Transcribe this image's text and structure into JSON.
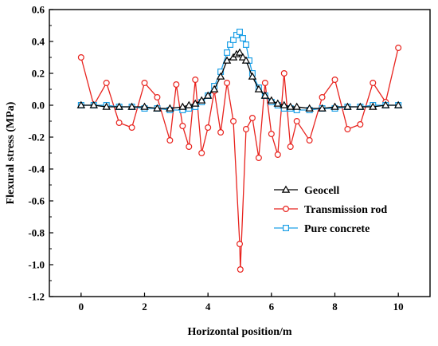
{
  "chart_data": {
    "type": "line",
    "title": "",
    "xlabel": "Horizontal position/m",
    "ylabel": "Flexural stress (MPa)",
    "xlim": [
      -1,
      11
    ],
    "ylim": [
      -1.2,
      0.6
    ],
    "xticks": [
      0,
      2,
      4,
      6,
      8,
      10
    ],
    "yticks": [
      -1.2,
      -1.0,
      -0.8,
      -0.6,
      -0.4,
      -0.2,
      0.0,
      0.2,
      0.4,
      0.6
    ],
    "xtick_labels": [
      "0",
      "2",
      "4",
      "6",
      "8",
      "10"
    ],
    "ytick_labels": [
      "-1.2",
      "-1.0",
      "-0.8",
      "-0.6",
      "-0.4",
      "-0.2",
      "0.0",
      "0.2",
      "0.4",
      "0.6"
    ],
    "grid": false,
    "legend_position": "lower-right",
    "series": [
      {
        "name": "Geocell",
        "color": "#000000",
        "marker": "triangle",
        "x": [
          0,
          0.4,
          0.8,
          1.2,
          1.6,
          2.0,
          2.4,
          2.8,
          3.2,
          3.4,
          3.6,
          3.8,
          4.0,
          4.2,
          4.4,
          4.6,
          4.8,
          4.9,
          5.0,
          5.1,
          5.2,
          5.4,
          5.6,
          5.8,
          6.0,
          6.2,
          6.4,
          6.6,
          6.8,
          7.2,
          7.6,
          8.0,
          8.4,
          8.8,
          9.2,
          9.6,
          10.0
        ],
        "y": [
          0.0,
          0.0,
          -0.01,
          -0.01,
          -0.01,
          -0.01,
          -0.02,
          -0.02,
          -0.01,
          0.0,
          0.01,
          0.03,
          0.06,
          0.1,
          0.18,
          0.28,
          0.3,
          0.32,
          0.33,
          0.3,
          0.28,
          0.18,
          0.1,
          0.06,
          0.03,
          0.01,
          0.0,
          -0.01,
          -0.01,
          -0.02,
          -0.02,
          -0.01,
          -0.01,
          -0.01,
          -0.01,
          0.0,
          0.0
        ]
      },
      {
        "name": "Transmission rod",
        "color": "#e8231e",
        "marker": "circle",
        "x": [
          0,
          0.4,
          0.8,
          1.2,
          1.6,
          2.0,
          2.4,
          2.8,
          3.0,
          3.2,
          3.4,
          3.6,
          3.8,
          4.0,
          4.2,
          4.4,
          4.6,
          4.8,
          5.0,
          5.02,
          5.2,
          5.4,
          5.6,
          5.8,
          6.0,
          6.2,
          6.4,
          6.6,
          6.8,
          7.2,
          7.6,
          8.0,
          8.4,
          8.8,
          9.2,
          9.6,
          10.0
        ],
        "y": [
          0.3,
          0.0,
          0.14,
          -0.11,
          -0.14,
          0.14,
          0.05,
          -0.22,
          0.13,
          -0.13,
          -0.26,
          0.16,
          -0.3,
          -0.14,
          0.09,
          -0.17,
          0.14,
          -0.1,
          -0.87,
          -1.03,
          -0.15,
          -0.08,
          -0.33,
          0.14,
          -0.18,
          -0.31,
          0.2,
          -0.26,
          -0.1,
          -0.22,
          0.05,
          0.16,
          -0.15,
          -0.12,
          0.14,
          0.02,
          0.36
        ]
      },
      {
        "name": "Pure concrete",
        "color": "#1ea0e6",
        "marker": "square",
        "x": [
          0,
          0.4,
          0.8,
          1.2,
          1.6,
          2.0,
          2.4,
          2.8,
          3.2,
          3.4,
          3.6,
          3.8,
          4.0,
          4.2,
          4.4,
          4.6,
          4.7,
          4.8,
          4.9,
          5.0,
          5.1,
          5.2,
          5.3,
          5.4,
          5.6,
          5.8,
          6.0,
          6.2,
          6.4,
          6.6,
          6.8,
          7.2,
          7.6,
          8.0,
          8.4,
          8.8,
          9.2,
          9.6,
          10.0
        ],
        "y": [
          0.0,
          0.0,
          0.0,
          -0.01,
          -0.01,
          -0.02,
          -0.02,
          -0.03,
          -0.03,
          -0.02,
          -0.01,
          0.02,
          0.06,
          0.12,
          0.21,
          0.33,
          0.38,
          0.41,
          0.44,
          0.46,
          0.42,
          0.38,
          0.28,
          0.2,
          0.11,
          0.06,
          0.02,
          0.0,
          -0.02,
          -0.02,
          -0.03,
          -0.03,
          -0.02,
          -0.02,
          -0.01,
          -0.01,
          0.0,
          0.0,
          0.0
        ]
      }
    ]
  }
}
